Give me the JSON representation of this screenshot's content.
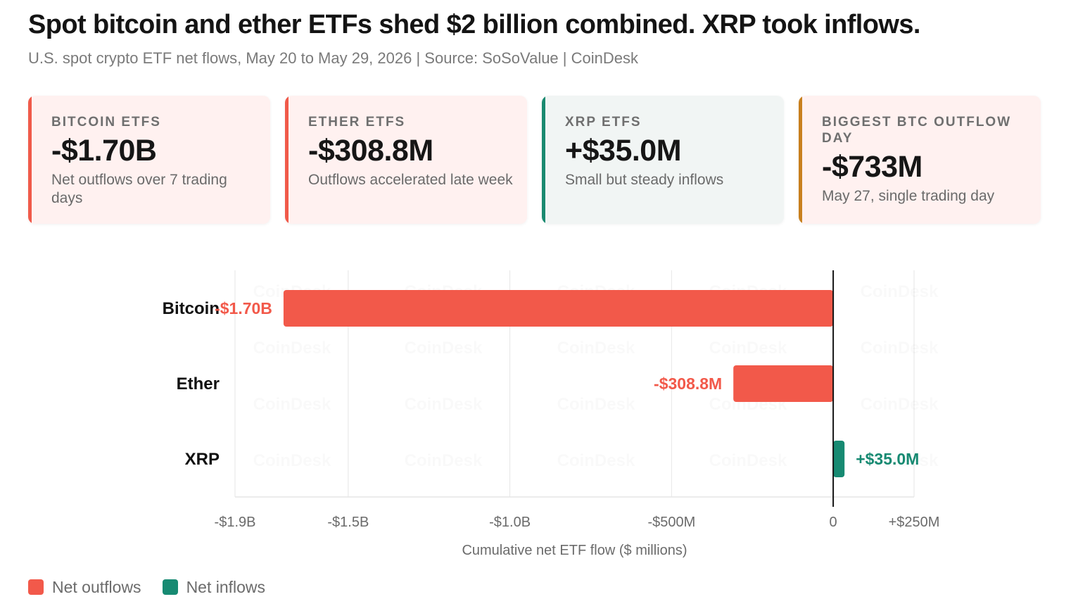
{
  "header": {
    "title": "Spot bitcoin and ether ETFs shed $2 billion combined. XRP took inflows.",
    "subtitle": "U.S. spot crypto ETF net flows, May 20 to May 29, 2026 | Source: SoSoValue | CoinDesk"
  },
  "cards": [
    {
      "eyebrow": "BITCOIN ETFS",
      "value": "-$1.70B",
      "note": "Net outflows over 7 trading days",
      "accent": "#f05a4a",
      "bg": "#fff1f0"
    },
    {
      "eyebrow": "ETHER ETFS",
      "value": "-$308.8M",
      "note": "Outflows accelerated late week",
      "accent": "#f05a4a",
      "bg": "#fff1f0"
    },
    {
      "eyebrow": "XRP ETFS",
      "value": "+$35.0M",
      "note": "Small but steady inflows",
      "accent": "#1a8a70",
      "bg": "#f1f5f4"
    },
    {
      "eyebrow": "BIGGEST BTC OUTFLOW DAY",
      "value": "-$733M",
      "note": "May 27, single trading day",
      "accent": "#c8801e",
      "bg": "#fff1f0"
    }
  ],
  "colors": {
    "outflow": "#f2594a",
    "inflow": "#178a72",
    "grid": "#e6e6e6",
    "zero": "#111111"
  },
  "chart_data": {
    "type": "bar",
    "orientation": "horizontal",
    "categories": [
      "Bitcoin",
      "Ether",
      "XRP"
    ],
    "values": [
      -1700,
      -308.8,
      35.0
    ],
    "value_labels": [
      "-$1.70B",
      "-$308.8M",
      "+$35.0M"
    ],
    "xlim": [
      -1850,
      250
    ],
    "x_ticks": [
      -1850,
      -1500,
      -1000,
      -500,
      0,
      250
    ],
    "x_tick_labels": [
      "-$1.9B",
      "-$1.5B",
      "-$1.0B",
      "-$500M",
      "0",
      "+$250M"
    ],
    "xlabel": "Cumulative net ETF flow ($ millions)",
    "grid": true,
    "legend": [
      {
        "label": "Net outflows",
        "color": "#f2594a"
      },
      {
        "label": "Net inflows",
        "color": "#178a72"
      }
    ],
    "legend_position": "bottom-left"
  },
  "watermark": "CoinDesk"
}
